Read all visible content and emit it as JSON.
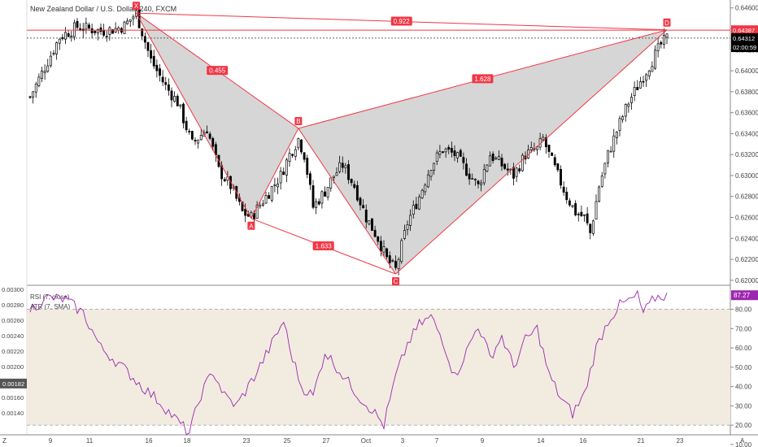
{
  "header": {
    "title": "New Zealand Dollar / U.S. Dollar, 240, FXCM"
  },
  "indicators": {
    "rsi_label": "RSI (7, close)",
    "atr_label": "ATR (7, SMA)"
  },
  "corner": {
    "left_bottom": "Z",
    "right_bottom": "A"
  },
  "colors": {
    "up": "#ffffff",
    "down": "#000000",
    "pattern_line": "#f23645",
    "pattern_fill": "#c8c8c8",
    "rsi": "#9c27b0",
    "rsi_band": "#f1ecdf"
  },
  "chart_data": [
    {
      "type": "candlestick",
      "title": "New Zealand Dollar / U.S. Dollar, 240, FXCM",
      "ylim": [
        0.6196,
        0.6466
      ],
      "y_ticks": [
        "0.64600",
        "0.64400",
        "0.64200",
        "0.64000",
        "0.63800",
        "0.63600",
        "0.63400",
        "0.63200",
        "0.63000",
        "0.62800",
        "0.62600",
        "0.62400",
        "0.62200",
        "0.62000"
      ],
      "x_ticks": [
        "9",
        "11",
        "16",
        "18",
        "23",
        "25",
        "27",
        "Oct",
        "3",
        "7",
        "9",
        "14",
        "16",
        "21",
        "23"
      ],
      "price_labels": [
        {
          "value": 0.64387,
          "text": "0.64387",
          "style": "red"
        },
        {
          "value": 0.64312,
          "text": "0.64312",
          "style": "black"
        },
        {
          "value": 0.64225,
          "text": "02:00:59",
          "style": "black"
        }
      ],
      "harmonic_pattern": {
        "points": [
          {
            "label": "X",
            "value": 0.6455
          },
          {
            "label": "A",
            "value": 0.6259
          },
          {
            "label": "B",
            "value": 0.6345
          },
          {
            "label": "C",
            "value": 0.6206
          },
          {
            "label": "D",
            "value": 0.6439
          }
        ],
        "ratios": [
          {
            "text": "0.455",
            "between": "XA-AB"
          },
          {
            "text": "1.628",
            "between": "BC-CD"
          },
          {
            "text": "1.633",
            "between": "AB-BC"
          },
          {
            "text": "0.922",
            "between": "XA-AD"
          }
        ]
      },
      "price_path": [
        [
          0,
          0.6375
        ],
        [
          10,
          0.6432
        ],
        [
          16,
          0.6442
        ],
        [
          24,
          0.6438
        ],
        [
          29,
          0.644
        ],
        [
          32,
          0.6443
        ],
        [
          36,
          0.6455
        ],
        [
          41,
          0.641
        ],
        [
          46,
          0.6385
        ],
        [
          50,
          0.637
        ],
        [
          55,
          0.633
        ],
        [
          60,
          0.6345
        ],
        [
          64,
          0.6305
        ],
        [
          68,
          0.629
        ],
        [
          72,
          0.6265
        ],
        [
          75,
          0.626
        ],
        [
          80,
          0.628
        ],
        [
          85,
          0.63
        ],
        [
          88,
          0.632
        ],
        [
          91,
          0.6335
        ],
        [
          93,
          0.632
        ],
        [
          96,
          0.627
        ],
        [
          100,
          0.6285
        ],
        [
          103,
          0.63
        ],
        [
          106,
          0.631
        ],
        [
          110,
          0.629
        ],
        [
          114,
          0.626
        ],
        [
          118,
          0.624
        ],
        [
          121,
          0.622
        ],
        [
          124,
          0.621
        ],
        [
          128,
          0.6255
        ],
        [
          132,
          0.628
        ],
        [
          136,
          0.631
        ],
        [
          140,
          0.6325
        ],
        [
          144,
          0.632
        ],
        [
          148,
          0.6305
        ],
        [
          152,
          0.629
        ],
        [
          156,
          0.632
        ],
        [
          160,
          0.631
        ],
        [
          164,
          0.63
        ],
        [
          168,
          0.632
        ],
        [
          172,
          0.6325
        ],
        [
          174,
          0.6335
        ],
        [
          176,
          0.632
        ],
        [
          179,
          0.63
        ],
        [
          182,
          0.628
        ],
        [
          185,
          0.6265
        ],
        [
          188,
          0.626
        ],
        [
          190,
          0.6245
        ],
        [
          193,
          0.629
        ],
        [
          196,
          0.632
        ],
        [
          200,
          0.635
        ],
        [
          203,
          0.637
        ],
        [
          206,
          0.6385
        ],
        [
          208,
          0.6395
        ],
        [
          211,
          0.641
        ],
        [
          214,
          0.6425
        ],
        [
          216,
          0.6431
        ]
      ],
      "num_candles": 217
    },
    {
      "type": "line",
      "title": "RSI (7, close)",
      "ylim": [
        15,
        92
      ],
      "y_ticks": [
        "80.00",
        "70.00",
        "60.00",
        "50.00",
        "40.00",
        "30.00",
        "20.00",
        "10.00"
      ],
      "band": [
        20,
        80
      ],
      "current_value": "87.27",
      "rsi_path": [
        [
          0,
          80
        ],
        [
          6,
          86
        ],
        [
          12,
          85
        ],
        [
          18,
          78
        ],
        [
          24,
          60
        ],
        [
          30,
          52
        ],
        [
          38,
          40
        ],
        [
          44,
          32
        ],
        [
          50,
          22
        ],
        [
          54,
          16
        ],
        [
          58,
          36
        ],
        [
          62,
          48
        ],
        [
          66,
          35
        ],
        [
          70,
          30
        ],
        [
          76,
          45
        ],
        [
          82,
          62
        ],
        [
          86,
          74
        ],
        [
          88,
          60
        ],
        [
          92,
          40
        ],
        [
          96,
          35
        ],
        [
          100,
          58
        ],
        [
          104,
          50
        ],
        [
          108,
          42
        ],
        [
          112,
          34
        ],
        [
          116,
          28
        ],
        [
          120,
          20
        ],
        [
          124,
          45
        ],
        [
          128,
          62
        ],
        [
          132,
          72
        ],
        [
          136,
          76
        ],
        [
          140,
          64
        ],
        [
          144,
          45
        ],
        [
          148,
          58
        ],
        [
          152,
          72
        ],
        [
          156,
          55
        ],
        [
          160,
          66
        ],
        [
          164,
          50
        ],
        [
          168,
          64
        ],
        [
          172,
          70
        ],
        [
          176,
          46
        ],
        [
          180,
          34
        ],
        [
          184,
          26
        ],
        [
          188,
          36
        ],
        [
          192,
          60
        ],
        [
          196,
          74
        ],
        [
          200,
          82
        ],
        [
          204,
          85
        ],
        [
          206,
          87
        ],
        [
          208,
          78
        ],
        [
          212,
          86
        ],
        [
          216,
          87.27
        ]
      ]
    },
    {
      "type": "line",
      "title": "ATR (7, SMA)",
      "y_ticks": [
        "0.00300",
        "0.00280",
        "0.00260",
        "0.00240",
        "0.00220",
        "0.00200",
        "0.00180",
        "0.00160",
        "0.00140"
      ],
      "current_value": "0.00182"
    }
  ]
}
